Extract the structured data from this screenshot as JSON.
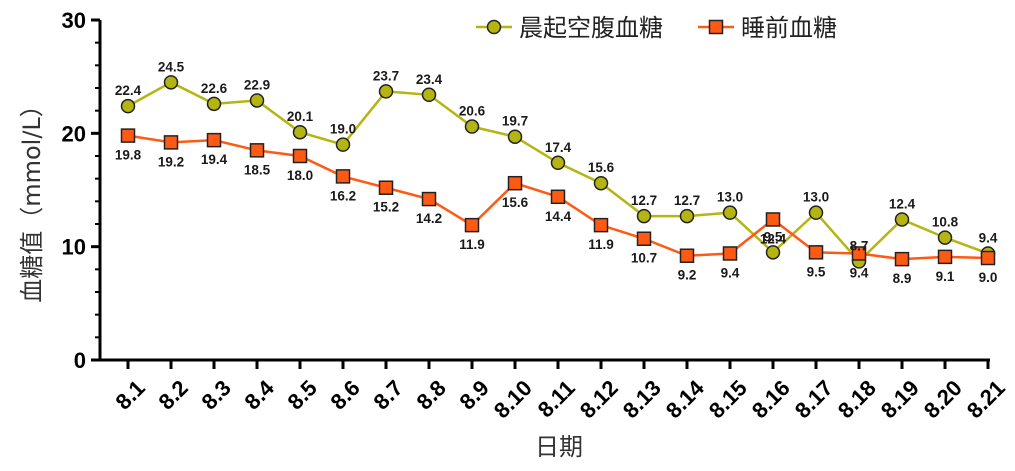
{
  "chart_data": {
    "type": "line",
    "categories": [
      "8.1",
      "8.2",
      "8.3",
      "8.4",
      "8.5",
      "8.6",
      "8.7",
      "8.8",
      "8.9",
      "8.10",
      "8.11",
      "8.12",
      "8.13",
      "8.14",
      "8.15",
      "8.16",
      "8.17",
      "8.18",
      "8.19",
      "8.20",
      "8.21"
    ],
    "series": [
      {
        "name": "晨起空腹血糖",
        "color": "#b5b512",
        "marker": "circle",
        "values": [
          22.4,
          24.5,
          22.6,
          22.9,
          20.1,
          19.0,
          23.7,
          23.4,
          20.6,
          19.7,
          17.4,
          15.6,
          12.7,
          12.7,
          13.0,
          9.5,
          13.0,
          8.7,
          12.4,
          10.8,
          9.4
        ],
        "labels": [
          "22.4",
          "24.5",
          "22.6",
          "22.9",
          "20.1",
          "19.0",
          "23.7",
          "23.4",
          "20.6",
          "19.7",
          "17.4",
          "15.6",
          "12.7",
          "12.7",
          "13.0",
          "9.5",
          "13.0",
          "8.7",
          "12.4",
          "10.8",
          "9.4"
        ]
      },
      {
        "name": "睡前血糖",
        "color": "#ff5a14",
        "marker": "square",
        "values": [
          19.8,
          19.2,
          19.4,
          18.5,
          18.0,
          16.2,
          15.2,
          14.2,
          11.9,
          15.6,
          14.4,
          11.9,
          10.7,
          9.2,
          9.4,
          12.4,
          9.5,
          9.4,
          8.9,
          9.1,
          9.0
        ],
        "labels": [
          "19.8",
          "19.2",
          "19.4",
          "18.5",
          "18.0",
          "16.2",
          "15.2",
          "14.2",
          "11.9",
          "15.6",
          "14.4",
          "11.9",
          "10.7",
          "9.2",
          "9.4",
          "12.4",
          "9.5",
          "9.4",
          "8.9",
          "9.1",
          "9.0"
        ]
      }
    ],
    "xlabel": "日期",
    "ylabel": "血糖值（mmol/L）",
    "ylim": [
      0,
      30
    ],
    "yticks": [
      "0",
      "10",
      "20",
      "30"
    ],
    "grid": false,
    "legend_position": "top-right"
  }
}
